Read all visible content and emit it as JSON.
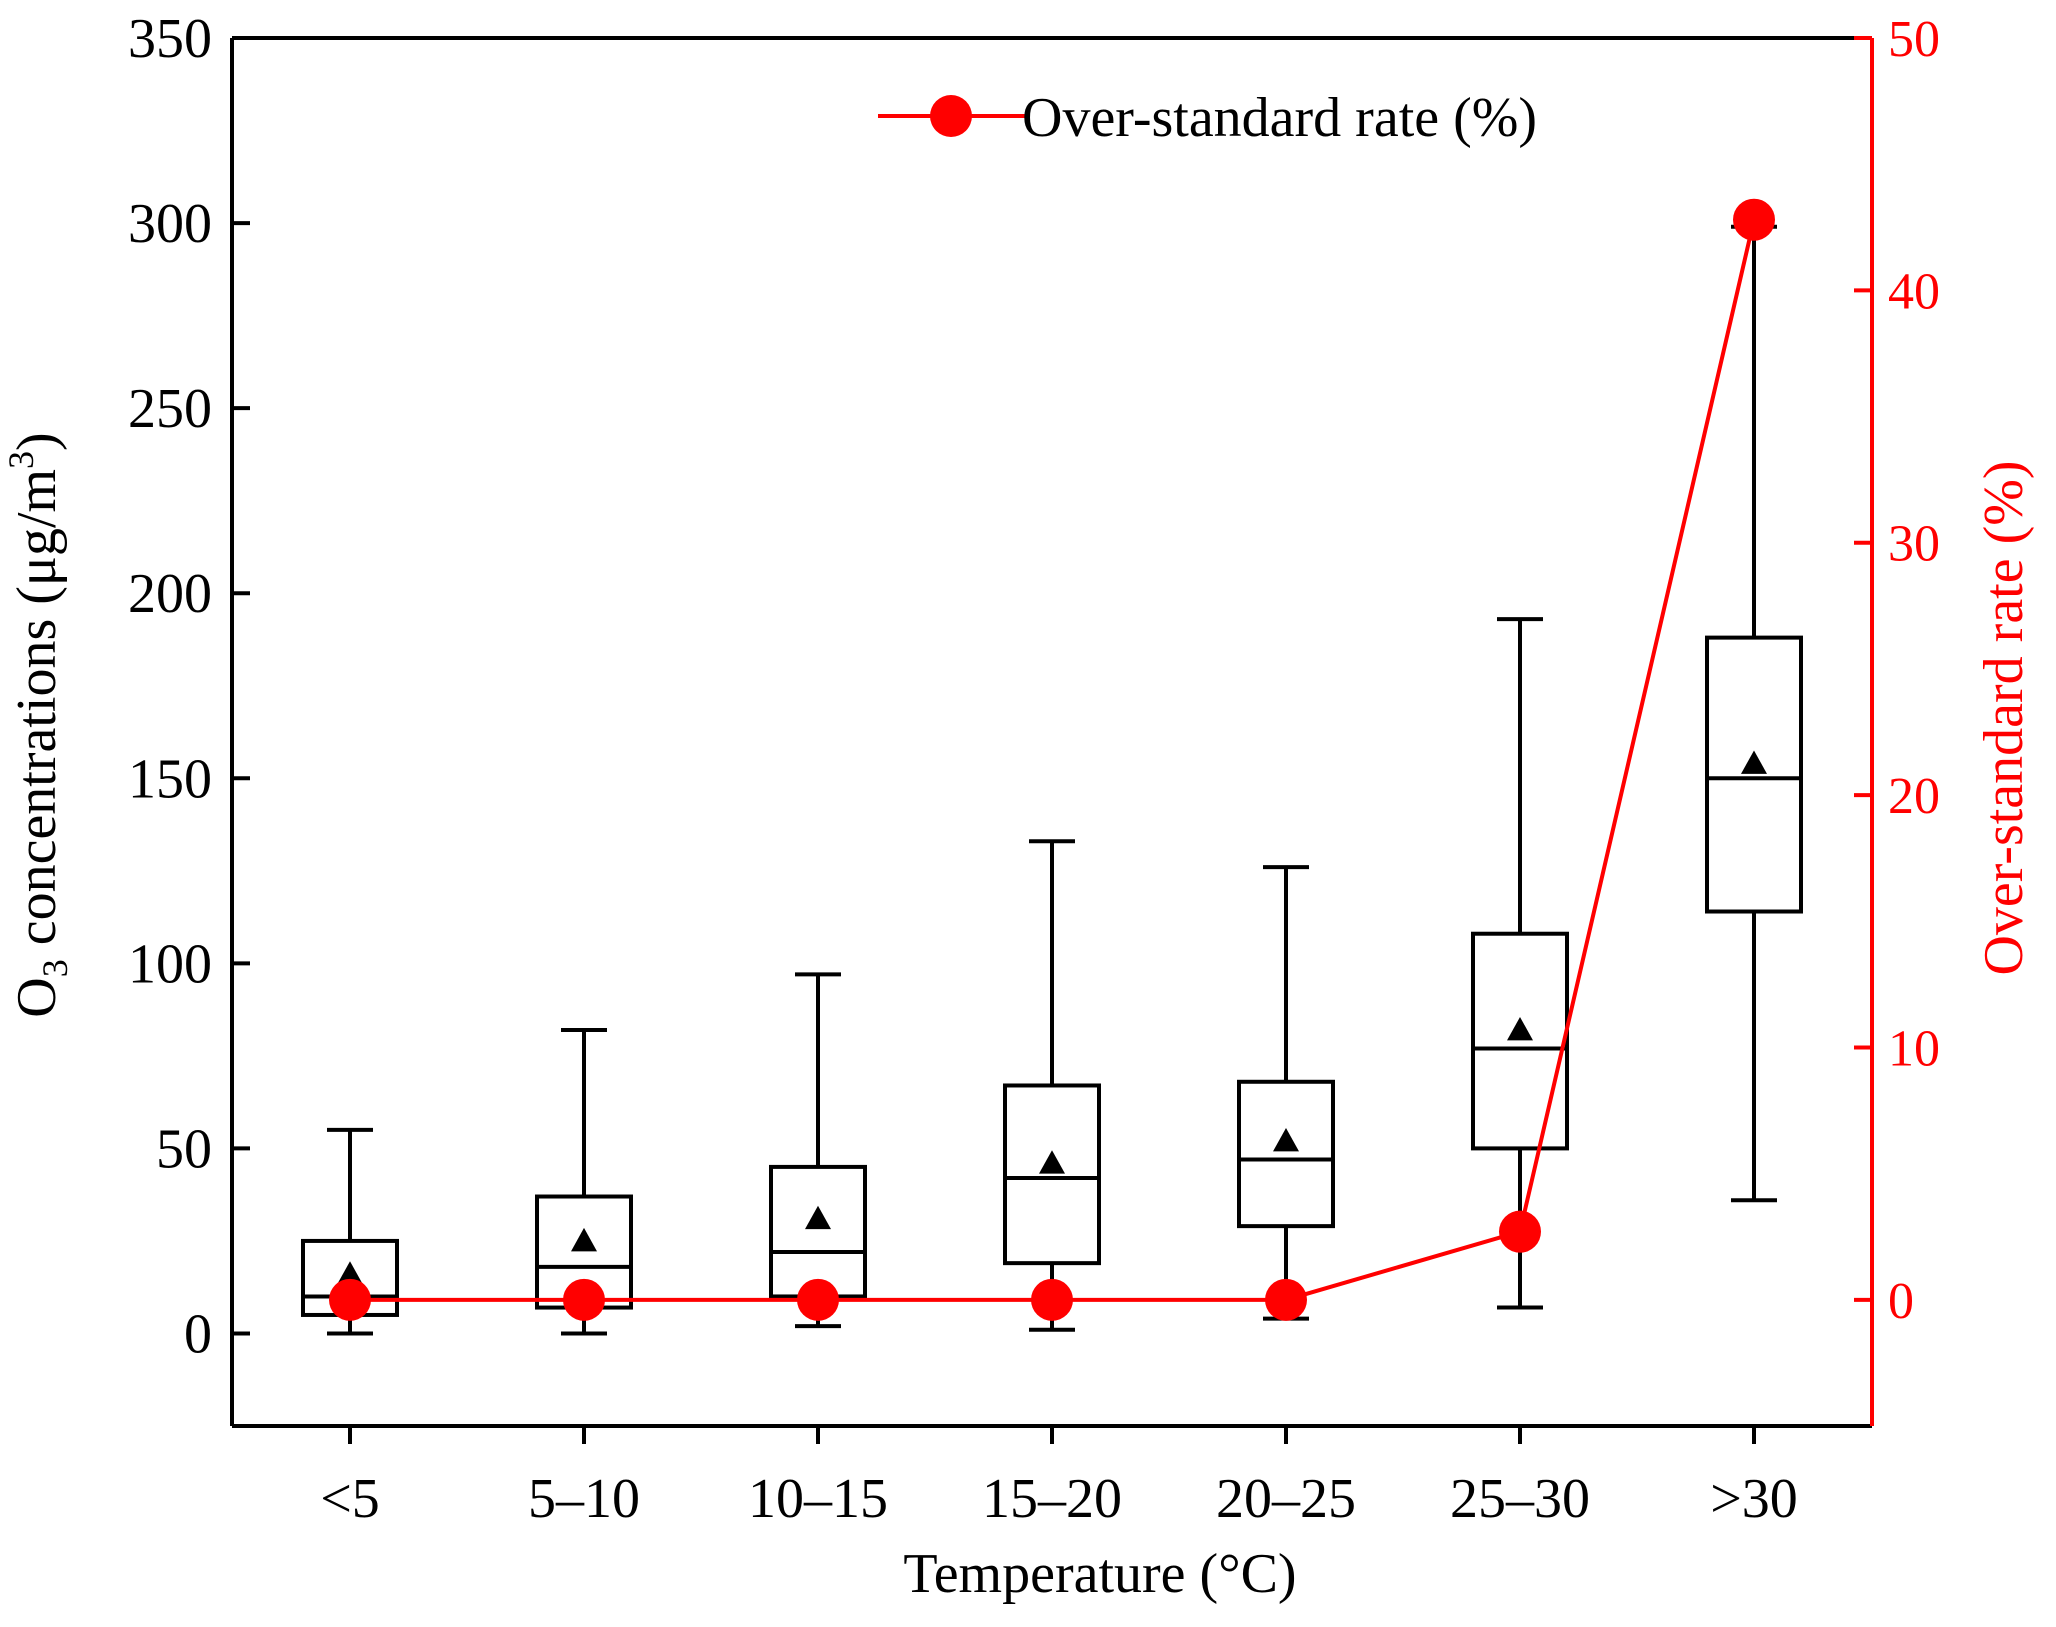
{
  "colors": {
    "axis": "#000000",
    "rate": "#ff0000",
    "background": "#ffffff"
  },
  "chart_data": {
    "type": "box+line",
    "xlabel": "Temperature (°C)",
    "ylabel_left": {
      "prefix": "O",
      "sub": "3",
      "main": " concentrations (μg/m",
      "sup": "3",
      "suffix": ")"
    },
    "ylabel_right": "Over-standard rate (%)",
    "categories": [
      "<5",
      "5–10",
      "10–15",
      "15–20",
      "20–25",
      "25–30",
      ">30"
    ],
    "ylim_left": [
      -25,
      350
    ],
    "yticks_left": [
      0,
      50,
      100,
      150,
      200,
      250,
      300,
      350
    ],
    "ylim_right": [
      -5,
      50
    ],
    "yticks_right": [
      0,
      10,
      20,
      30,
      40,
      50
    ],
    "boxes": [
      {
        "category": "<5",
        "min": 0,
        "q1": 5,
        "median": 10,
        "q3": 25,
        "max": 55,
        "mean": 16
      },
      {
        "category": "5–10",
        "min": 0,
        "q1": 7,
        "median": 18,
        "q3": 37,
        "max": 82,
        "mean": 25
      },
      {
        "category": "10–15",
        "min": 2,
        "q1": 10,
        "median": 22,
        "q3": 45,
        "max": 97,
        "mean": 31
      },
      {
        "category": "15–20",
        "min": 1,
        "q1": 19,
        "median": 42,
        "q3": 67,
        "max": 133,
        "mean": 46
      },
      {
        "category": "20–25",
        "min": 4,
        "q1": 29,
        "median": 47,
        "q3": 68,
        "max": 126,
        "mean": 52
      },
      {
        "category": "25–30",
        "min": 7,
        "q1": 50,
        "median": 77,
        "q3": 108,
        "max": 193,
        "mean": 82
      },
      {
        "category": ">30",
        "min": 36,
        "q1": 114,
        "median": 150,
        "q3": 188,
        "max": 299,
        "mean": 154
      }
    ],
    "series": [
      {
        "name": "Over-standard rate (%)",
        "axis": "right",
        "values": [
          0,
          0,
          0,
          0,
          0,
          2.7,
          42.8
        ]
      }
    ],
    "legend": {
      "label": "Over-standard rate (%)",
      "position": "top-center"
    }
  }
}
